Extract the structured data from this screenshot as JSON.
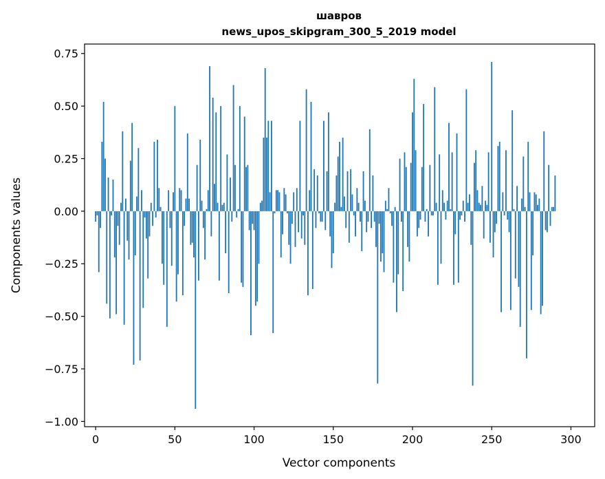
{
  "chart_data": {
    "type": "bar",
    "title_line1": "шавров",
    "title_line2": "news_upos_skipgram_300_5_2019 model",
    "xlabel": "Vector components",
    "ylabel": "Components values",
    "xlim": [
      -7,
      315
    ],
    "ylim": [
      -1.025,
      0.795
    ],
    "xticks": [
      0,
      50,
      100,
      150,
      200,
      250,
      300
    ],
    "xtick_labels": [
      "0",
      "50",
      "100",
      "150",
      "200",
      "250",
      "300"
    ],
    "yticks": [
      0.75,
      0.5,
      0.25,
      0.0,
      -0.25,
      -0.5,
      -0.75,
      -1.0
    ],
    "ytick_labels": [
      "0.75",
      "0.50",
      "0.25",
      "0.00",
      "−0.25",
      "−0.50",
      "−0.75",
      "−1.00"
    ],
    "bar_color": "#1f77b4",
    "values": [
      -0.05,
      -0.02,
      -0.29,
      -0.08,
      0.33,
      0.52,
      0.25,
      -0.44,
      0.16,
      -0.51,
      -0.02,
      0.15,
      -0.22,
      -0.49,
      -0.07,
      -0.16,
      0.04,
      0.38,
      -0.54,
      0.06,
      -0.14,
      -0.23,
      0.24,
      0.42,
      -0.73,
      -0.21,
      0.07,
      0.3,
      -0.71,
      0.1,
      -0.46,
      -0.03,
      -0.13,
      -0.32,
      -0.12,
      0.04,
      -0.07,
      0.33,
      -0.03,
      0.34,
      0.11,
      0.02,
      -0.25,
      -0.35,
      0.0,
      -0.55,
      0.1,
      -0.08,
      -0.26,
      0.09,
      0.5,
      -0.43,
      -0.3,
      0.11,
      0.1,
      -0.4,
      -0.07,
      0.06,
      0.37,
      0.06,
      -0.16,
      -0.15,
      -0.22,
      -0.94,
      0.22,
      -0.33,
      0.34,
      0.05,
      -0.08,
      -0.23,
      0.01,
      0.1,
      0.69,
      -0.12,
      0.54,
      0.13,
      0.47,
      0.04,
      -0.33,
      0.5,
      0.03,
      0.04,
      -0.2,
      0.27,
      -0.39,
      0.16,
      -0.05,
      0.6,
      0.22,
      -0.03,
      0.01,
      0.5,
      -0.34,
      -0.36,
      0.45,
      0.21,
      0.22,
      -0.09,
      -0.59,
      -0.06,
      -0.09,
      -0.45,
      -0.43,
      -0.25,
      0.04,
      0.05,
      0.35,
      0.68,
      0.35,
      0.43,
      0.09,
      0.43,
      -0.58,
      -0.01,
      0.1,
      0.1,
      0.09,
      -0.22,
      -0.11,
      0.11,
      0.08,
      -0.01,
      -0.16,
      -0.25,
      -0.06,
      0.09,
      -0.17,
      0.11,
      -0.1,
      0.43,
      -0.13,
      -0.02,
      -0.16,
      0.58,
      -0.4,
      0.1,
      0.52,
      -0.37,
      0.2,
      -0.08,
      0.17,
      -0.01,
      -0.05,
      -0.05,
      0.43,
      -0.09,
      0.19,
      0.47,
      -0.12,
      -0.27,
      -0.2,
      0.04,
      0.17,
      0.26,
      0.33,
      0.02,
      0.35,
      0.07,
      -0.08,
      0.19,
      -0.15,
      0.2,
      0.08,
      -0.02,
      -0.12,
      0.11,
      0.04,
      -0.05,
      -0.19,
      0.19,
      0.05,
      -0.1,
      -0.05,
      0.39,
      -0.08,
      0.17,
      -0.05,
      -0.17,
      -0.82,
      -0.06,
      -0.24,
      -0.2,
      -0.29,
      0.05,
      0.01,
      0.11,
      -0.01,
      -0.07,
      -0.34,
      0.02,
      -0.48,
      -0.3,
      0.25,
      -0.05,
      -0.38,
      0.28,
      0.21,
      -0.17,
      -0.24,
      0.23,
      0.47,
      0.63,
      0.29,
      -0.12,
      -0.08,
      -0.04,
      0.21,
      0.51,
      -0.05,
      0.01,
      -0.12,
      0.22,
      -0.02,
      -0.02,
      0.59,
      0.04,
      -0.35,
      0.27,
      -0.25,
      0.1,
      0.04,
      -0.04,
      0.05,
      0.42,
      0.01,
      0.28,
      -0.35,
      -0.11,
      0.37,
      -0.34,
      -0.04,
      -0.02,
      0.05,
      -0.05,
      0.58,
      0.04,
      0.08,
      -0.16,
      -0.83,
      0.23,
      0.29,
      0.1,
      0.04,
      0.03,
      0.12,
      -0.13,
      0.05,
      0.03,
      0.28,
      -0.15,
      0.71,
      -0.22,
      -0.1,
      -0.06,
      0.31,
      0.33,
      -0.48,
      0.09,
      -0.02,
      0.29,
      -0.04,
      -0.1,
      -0.47,
      0.48,
      0.01,
      -0.32,
      0.12,
      -0.36,
      -0.55,
      0.06,
      0.26,
      0.02,
      -0.7,
      0.33,
      0.09,
      -0.47,
      -0.21,
      0.09,
      0.08,
      0.03,
      0.06,
      -0.49,
      -0.45,
      0.38,
      -0.09,
      -0.1,
      0.22,
      -0.07,
      0.02,
      0.02,
      0.17
    ]
  }
}
